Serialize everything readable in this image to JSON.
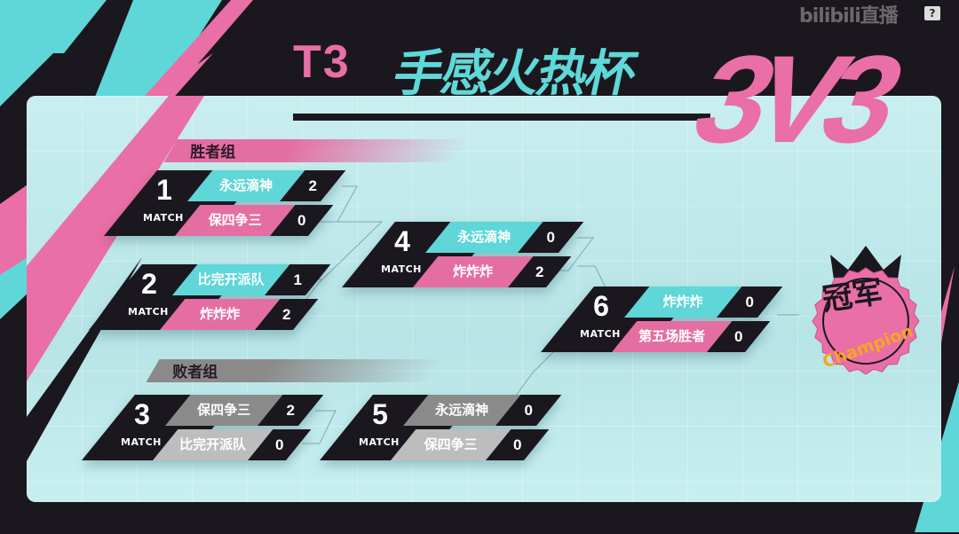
{
  "header": {
    "series": "T3",
    "title": "手感火热杯",
    "format": "3V3"
  },
  "watermark": "bilibili直播",
  "help_label": "?",
  "groups": {
    "winners": "胜者组",
    "losers": "败者组"
  },
  "match_label": "MATCH",
  "colors": {
    "cyan": "#5fd6d8",
    "pink": "#e46ea2",
    "grey_dark": "#8a8a8a",
    "grey_light": "#bdbdbd",
    "black": "#1b171e",
    "champion_text": "#f5a623"
  },
  "matches": [
    {
      "number": "1",
      "bracket": "winners",
      "teams": [
        {
          "name": "永远滴神",
          "score": "2"
        },
        {
          "name": "保四争三",
          "score": "0"
        }
      ]
    },
    {
      "number": "2",
      "bracket": "winners",
      "teams": [
        {
          "name": "比完开派队",
          "score": "1"
        },
        {
          "name": "炸炸炸",
          "score": "2"
        }
      ]
    },
    {
      "number": "4",
      "bracket": "winners",
      "teams": [
        {
          "name": "永远滴神",
          "score": "0"
        },
        {
          "name": "炸炸炸",
          "score": "2"
        }
      ]
    },
    {
      "number": "6",
      "bracket": "winners",
      "teams": [
        {
          "name": "炸炸炸",
          "score": "0"
        },
        {
          "name": "第五场胜者",
          "score": "0"
        }
      ]
    },
    {
      "number": "3",
      "bracket": "losers",
      "teams": [
        {
          "name": "保四争三",
          "score": "2"
        },
        {
          "name": "比完开派队",
          "score": "0"
        }
      ]
    },
    {
      "number": "5",
      "bracket": "losers",
      "teams": [
        {
          "name": "永远滴神",
          "score": "0"
        },
        {
          "name": "保四争三",
          "score": "0"
        }
      ]
    }
  ],
  "champion": {
    "label_cn": "冠军",
    "label_en": "Champion",
    "icon": "crown-icon"
  }
}
